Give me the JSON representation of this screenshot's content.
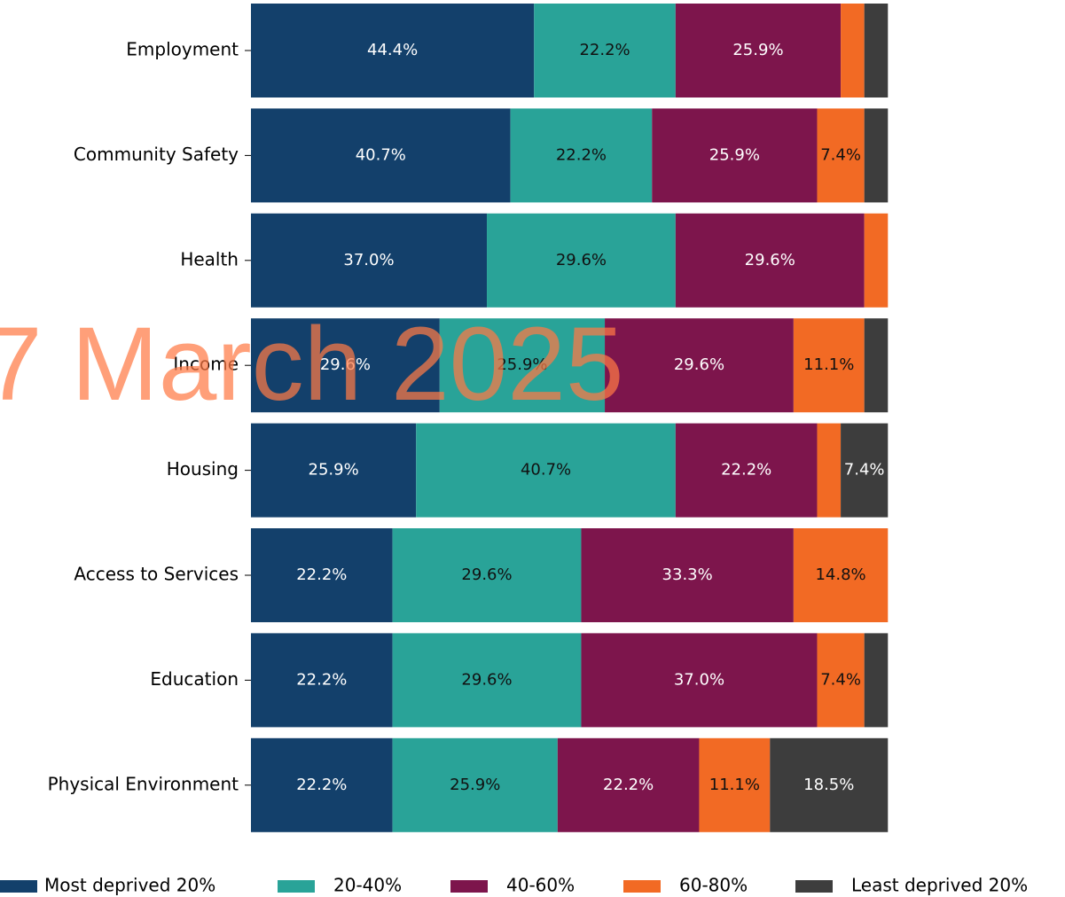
{
  "chart_data": {
    "type": "stacked-barh",
    "categories": [
      "Employment",
      "Community Safety",
      "Health",
      "Income",
      "Housing",
      "Access to Services",
      "Education",
      "Physical Environment"
    ],
    "series": [
      {
        "name": "Most deprived 20%",
        "color": "#13406b",
        "values": [
          44.4,
          40.7,
          37.0,
          29.6,
          25.9,
          22.2,
          22.2,
          22.2
        ],
        "value_labels": [
          "44.4%",
          "40.7%",
          "37.0%",
          "29.6%",
          "25.9%",
          "22.2%",
          "22.2%",
          "22.2%"
        ]
      },
      {
        "name": "20-40%",
        "color": "#29a398",
        "values": [
          22.2,
          22.2,
          29.6,
          25.9,
          40.7,
          29.6,
          29.6,
          25.9
        ],
        "value_labels": [
          "22.2%",
          "22.2%",
          "29.6%",
          "25.9%",
          "40.7%",
          "29.6%",
          "29.6%",
          "25.9%"
        ]
      },
      {
        "name": "40-60%",
        "color": "#7d154c",
        "values": [
          25.9,
          25.9,
          29.6,
          29.6,
          22.2,
          33.3,
          37.0,
          22.2
        ],
        "value_labels": [
          "25.9%",
          "25.9%",
          "29.6%",
          "29.6%",
          "22.2%",
          "33.3%",
          "37.0%",
          "22.2%"
        ]
      },
      {
        "name": "60-80%",
        "color": "#f26a24",
        "values": [
          3.7,
          7.4,
          3.7,
          11.1,
          3.7,
          14.8,
          7.4,
          11.1
        ],
        "value_labels": [
          null,
          "7.4%",
          null,
          "11.1%",
          null,
          "14.8%",
          "7.4%",
          "11.1%"
        ]
      },
      {
        "name": "Least deprived 20%",
        "color": "#3d3d3d",
        "values": [
          3.7,
          3.7,
          0,
          3.7,
          7.4,
          0,
          3.7,
          18.5
        ],
        "value_labels": [
          null,
          null,
          null,
          null,
          "7.4%",
          null,
          null,
          "18.5%"
        ]
      }
    ],
    "xlim": [
      0,
      100
    ],
    "watermark": "7 March 2025"
  }
}
